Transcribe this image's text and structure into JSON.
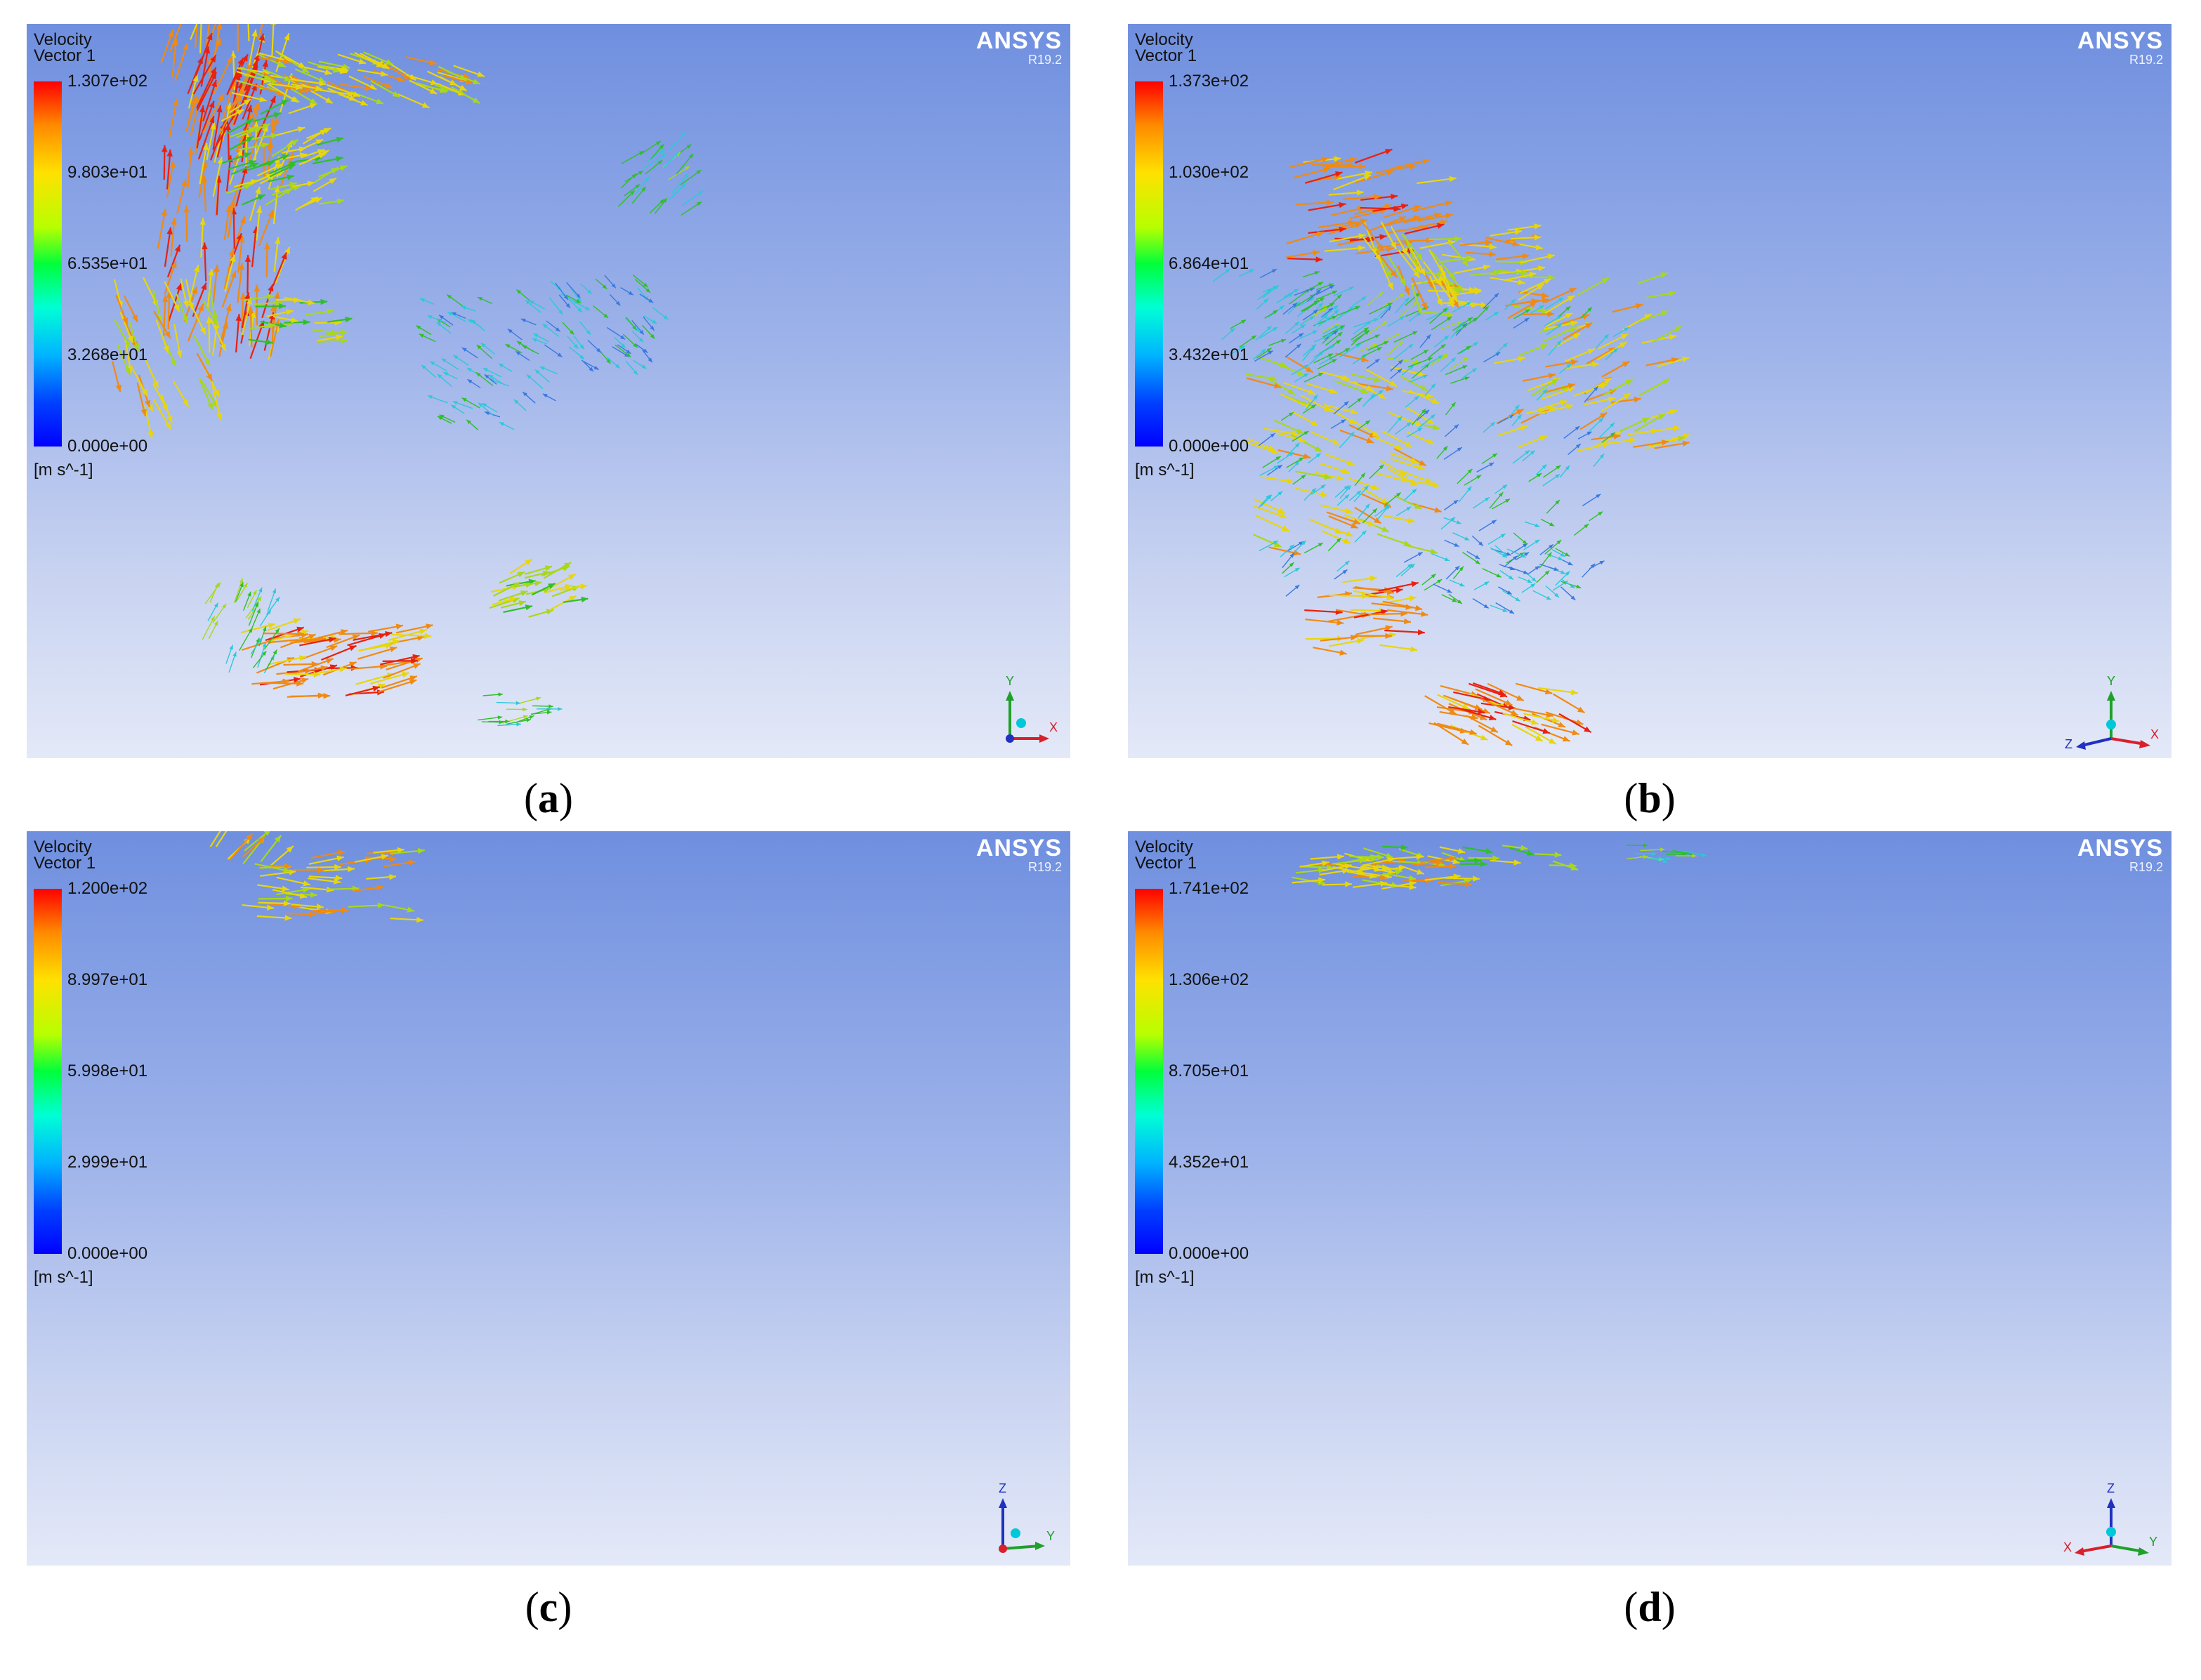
{
  "panels": [
    {
      "id": "a",
      "caption": {
        "open": "(",
        "letter": "a",
        "close": ")"
      },
      "title": "Velocity",
      "subtitle": "Vector 1",
      "ticks": [
        "1.307e+02",
        "9.803e+01",
        "6.535e+01",
        "3.268e+01",
        "0.000e+00"
      ],
      "unit": "[m s^-1]",
      "brand": "ANSYS",
      "version": "R19.2",
      "axes": {
        "up": "Y",
        "right": "X",
        "left": ""
      }
    },
    {
      "id": "b",
      "caption": {
        "open": "(",
        "letter": "b",
        "close": ")"
      },
      "title": "Velocity",
      "subtitle": "Vector 1",
      "ticks": [
        "1.373e+02",
        "1.030e+02",
        "6.864e+01",
        "3.432e+01",
        "0.000e+00"
      ],
      "unit": "[m s^-1]",
      "brand": "ANSYS",
      "version": "R19.2",
      "axes": {
        "up": "Y",
        "right": "X",
        "left": "Z"
      }
    },
    {
      "id": "c",
      "caption": {
        "open": "(",
        "letter": "c",
        "close": ")"
      },
      "title": "Velocity",
      "subtitle": "Vector 1",
      "ticks": [
        "1.200e+02",
        "8.997e+01",
        "5.998e+01",
        "2.999e+01",
        "0.000e+00"
      ],
      "unit": "[m s^-1]",
      "brand": "ANSYS",
      "version": "R19.2",
      "axes": {
        "up": "Z",
        "right": "Y",
        "left": ""
      }
    },
    {
      "id": "d",
      "caption": {
        "open": "(",
        "letter": "d",
        "close": ")"
      },
      "title": "Velocity",
      "subtitle": "Vector 1",
      "ticks": [
        "1.741e+02",
        "1.306e+02",
        "8.705e+01",
        "4.352e+01",
        "0.000e+00"
      ],
      "unit": "[m s^-1]",
      "brand": "ANSYS",
      "version": "R19.2",
      "axes": {
        "up": "Z",
        "right": "Y",
        "left": "X"
      }
    }
  ],
  "colors": {
    "red": "#e8210f",
    "orange": "#f08a12",
    "yellow": "#e8d60c",
    "lime": "#a8d81a",
    "green": "#2fbf2a",
    "cyan": "#2ec8d8",
    "blue": "#3a78e0",
    "axis_y": "#1fa02a",
    "axis_x": "#d8202a",
    "axis_z": "#2030c0",
    "axis_dot": "#00c8d8"
  }
}
